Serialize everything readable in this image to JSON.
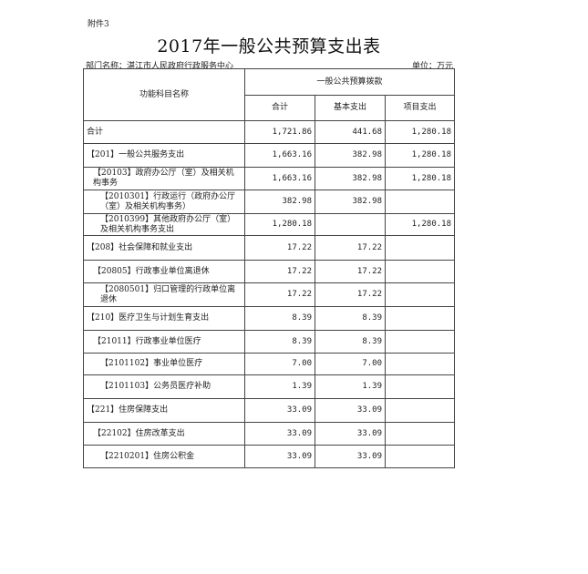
{
  "attachment": "附件3",
  "title": "2017年一般公共预算支出表",
  "department": "部门名称：湛江市人民政府行政服务中心",
  "unit": "单位：万元",
  "header": {
    "name": "功能科目名称",
    "group": "一般公共预算拨款",
    "cols": [
      "合计",
      "基本支出",
      "项目支出"
    ]
  },
  "rows": [
    {
      "name": "合计",
      "total": "1,721.86",
      "basic": "441.68",
      "project": "1,280.18"
    },
    {
      "name": "【201】一般公共服务支出",
      "total": "1,663.16",
      "basic": "382.98",
      "project": "1,280.18"
    },
    {
      "name": "【20103】政府办公厅（室）及相关机构事务",
      "total": "1,663.16",
      "basic": "382.98",
      "project": "1,280.18"
    },
    {
      "name": "【2010301】行政运行（政府办公厅（室）及相关机构事务）",
      "total": "382.98",
      "basic": "382.98",
      "project": ""
    },
    {
      "name": "【2010399】其他政府办公厅（室）及相关机构事务支出",
      "total": "1,280.18",
      "basic": "",
      "project": "1,280.18"
    },
    {
      "name": "【208】社会保障和就业支出",
      "total": "17.22",
      "basic": "17.22",
      "project": ""
    },
    {
      "name": "【20805】行政事业单位离退休",
      "total": "17.22",
      "basic": "17.22",
      "project": ""
    },
    {
      "name": "【2080501】归口管理的行政单位离退休",
      "total": "17.22",
      "basic": "17.22",
      "project": ""
    },
    {
      "name": "【210】医疗卫生与计划生育支出",
      "total": "8.39",
      "basic": "8.39",
      "project": ""
    },
    {
      "name": "【21011】行政事业单位医疗",
      "total": "8.39",
      "basic": "8.39",
      "project": ""
    },
    {
      "name": "【2101102】事业单位医疗",
      "total": "7.00",
      "basic": "7.00",
      "project": ""
    },
    {
      "name": "【2101103】公务员医疗补助",
      "total": "1.39",
      "basic": "1.39",
      "project": ""
    },
    {
      "name": "【221】住房保障支出",
      "total": "33.09",
      "basic": "33.09",
      "project": ""
    },
    {
      "name": "【22102】住房改革支出",
      "total": "33.09",
      "basic": "33.09",
      "project": ""
    },
    {
      "name": "【2210201】住房公积金",
      "total": "33.09",
      "basic": "33.09",
      "project": ""
    }
  ]
}
